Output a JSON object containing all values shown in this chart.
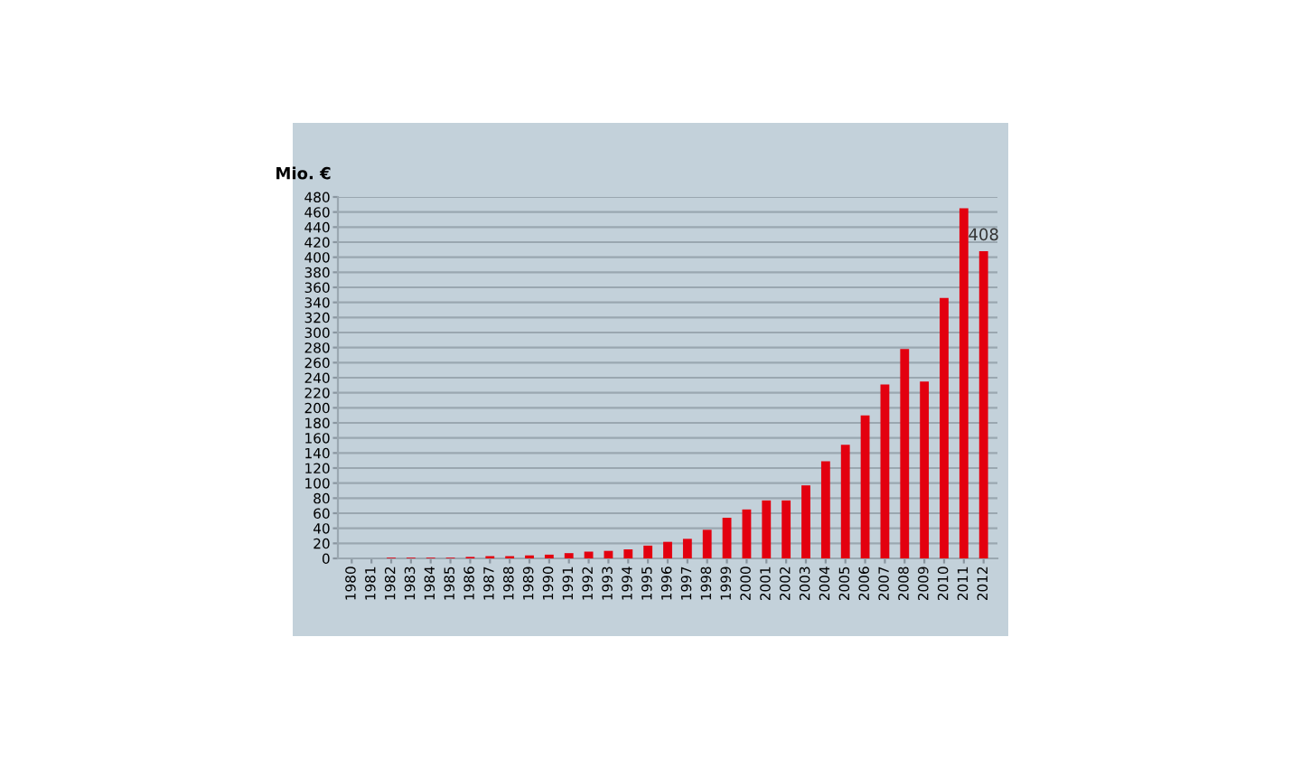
{
  "chart_data": {
    "type": "bar",
    "ylabel": "Mio. €",
    "categories": [
      "1980",
      "1981",
      "1982",
      "1983",
      "1984",
      "1985",
      "1986",
      "1987",
      "1988",
      "1989",
      "1990",
      "1991",
      "1992",
      "1993",
      "1994",
      "1995",
      "1996",
      "1997",
      "1998",
      "1999",
      "2000",
      "2001",
      "2002",
      "2003",
      "2004",
      "2005",
      "2006",
      "2007",
      "2008",
      "2009",
      "2010",
      "2011",
      "2012"
    ],
    "values": [
      0,
      0,
      1,
      1,
      1,
      1,
      2,
      3,
      3,
      4,
      5,
      7,
      9,
      10,
      12,
      17,
      22,
      26,
      38,
      54,
      65,
      77,
      77,
      97,
      129,
      151,
      190,
      231,
      278,
      235,
      346,
      465,
      408
    ],
    "value_labels": [
      null,
      null,
      null,
      null,
      null,
      null,
      null,
      null,
      null,
      null,
      null,
      null,
      null,
      null,
      null,
      null,
      null,
      null,
      null,
      null,
      null,
      null,
      null,
      null,
      null,
      null,
      null,
      null,
      null,
      null,
      null,
      null,
      "408"
    ],
    "color": "#e3000f",
    "ylim": [
      0,
      480
    ],
    "yticks": [
      0,
      20,
      40,
      60,
      80,
      100,
      120,
      140,
      160,
      180,
      200,
      220,
      240,
      260,
      280,
      300,
      320,
      340,
      360,
      380,
      400,
      420,
      440,
      460,
      480
    ],
    "grid": "y"
  }
}
